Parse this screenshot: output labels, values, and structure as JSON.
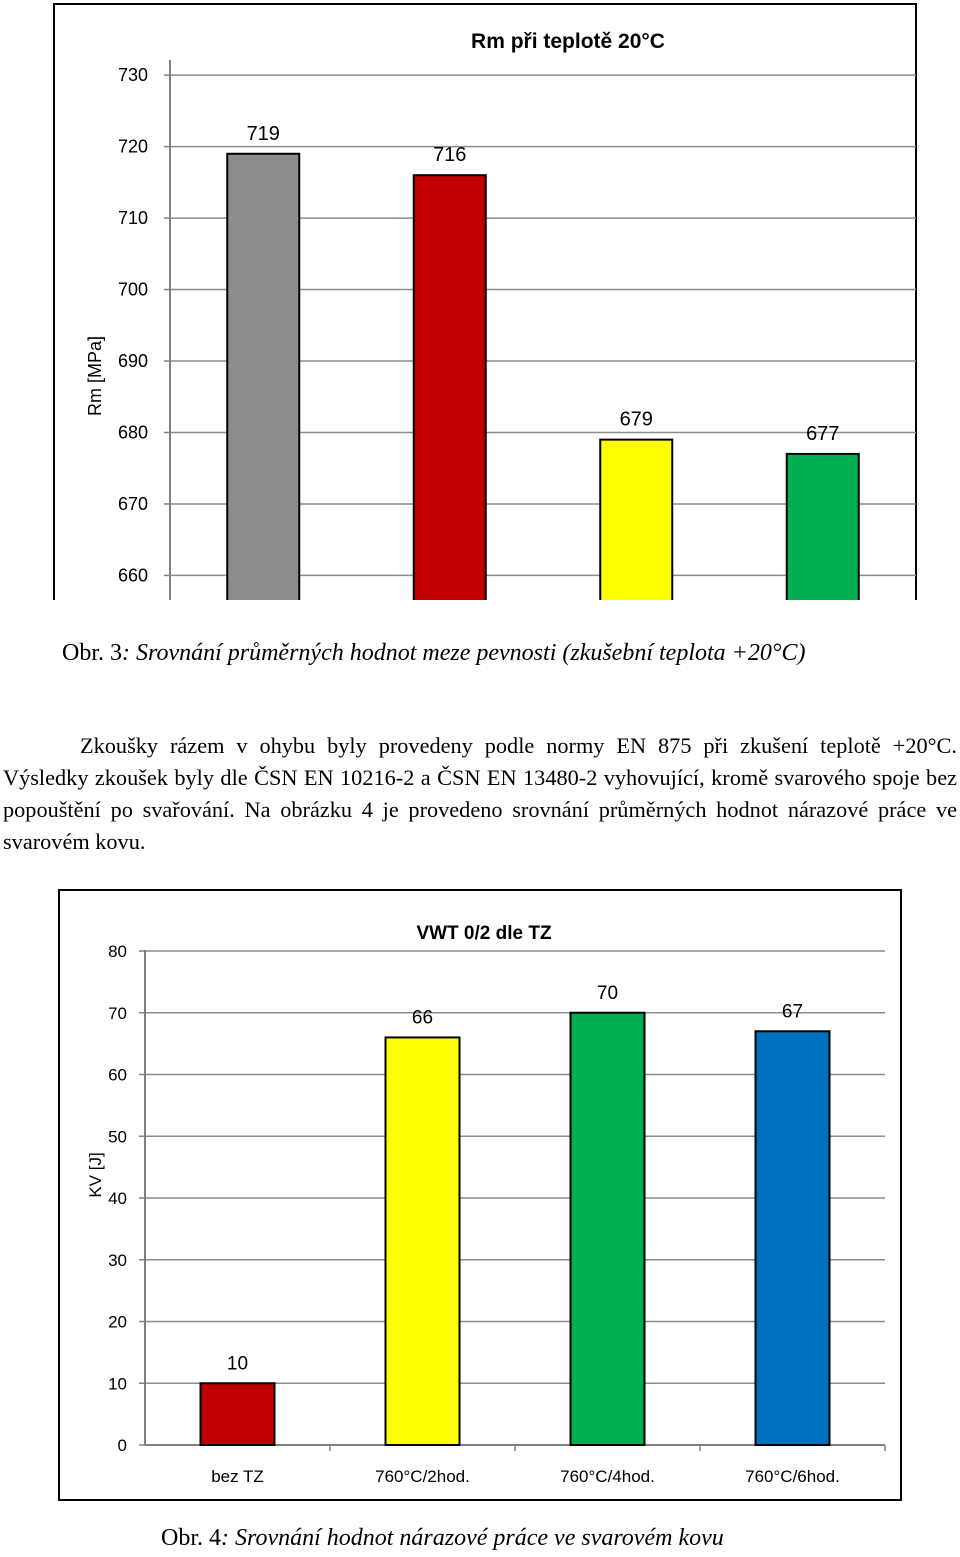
{
  "chart_data": [
    {
      "type": "bar",
      "title": "Rm při teplotě 20°C",
      "xlabel": "",
      "ylabel": "Rm [MPa]",
      "ylim": [
        656,
        731
      ],
      "yticks": [
        730,
        720,
        710,
        700,
        690,
        680,
        670,
        660
      ],
      "grid": true,
      "categories": [
        "",
        "",
        "",
        ""
      ],
      "values": [
        719,
        716,
        679,
        677
      ],
      "data_labels": [
        "719",
        "716",
        "679",
        "677"
      ],
      "colors": [
        "#8c8c8c",
        "#c00000",
        "#ffff00",
        "#00b050"
      ]
    },
    {
      "type": "bar",
      "title": "VWT 0/2 dle TZ",
      "xlabel": "",
      "ylabel": "KV [J]",
      "ylim": [
        0,
        80
      ],
      "yticks": [
        80,
        70,
        60,
        50,
        40,
        30,
        20,
        10,
        0
      ],
      "grid": true,
      "categories": [
        "bez TZ",
        "760°C/2hod.",
        "760°C/4hod.",
        "760°C/6hod."
      ],
      "values": [
        10,
        66,
        70,
        67
      ],
      "data_labels": [
        "10",
        "66",
        "70",
        "67"
      ],
      "colors": [
        "#c00000",
        "#ffff00",
        "#00b050",
        "#0070c0"
      ]
    }
  ],
  "caption3": {
    "prefix": "Obr. 3",
    "text": ": Srovnání průměrných hodnot meze pevnosti (zkušební teplota +20°C)"
  },
  "paragraph": "Zkoušky rázem v ohybu byly provedeny podle normy EN 875 při zkušení teplotě +20°C. Výsledky zkoušek byly dle ČSN EN 10216-2 a ČSN EN 13480-2 vyhovující, kromě svarového spoje bez popouštění po svařování. Na obrázku 4 je provedeno srovnání průměrných hodnot nárazové práce ve svarovém kovu.",
  "caption4": {
    "prefix": "Obr. 4",
    "text": ": Srovnání hodnot nárazové práce ve svarovém kovu"
  }
}
